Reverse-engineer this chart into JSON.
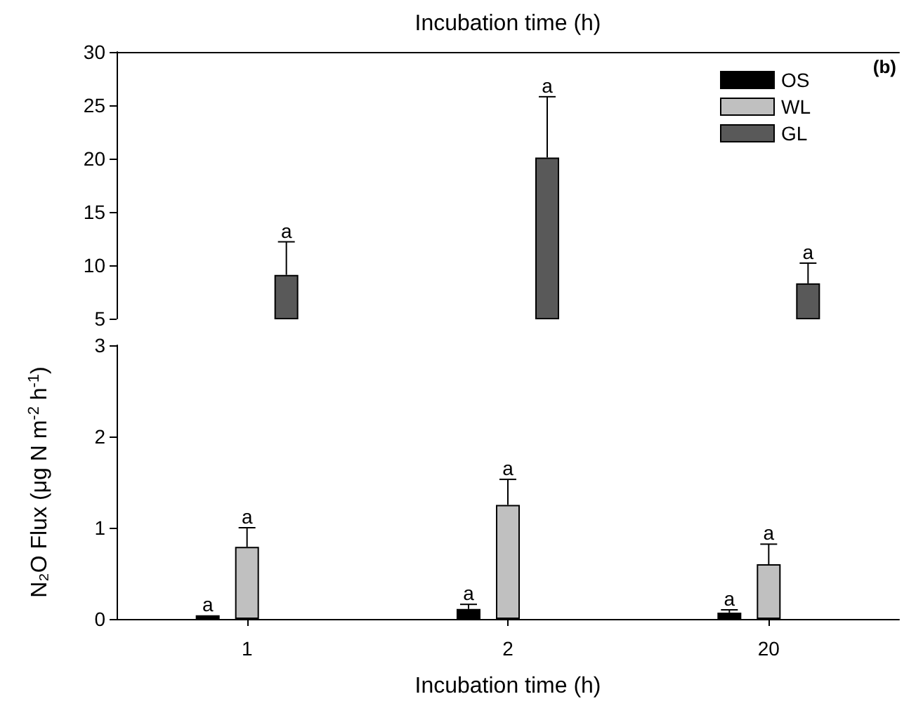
{
  "chart_data": [
    {
      "type": "bar",
      "xlabel": "Incubation time (h)",
      "categories": [
        "1",
        "2",
        "20"
      ],
      "series": [
        {
          "name": "OS",
          "color": "#000000",
          "values": [
            null,
            null,
            null
          ]
        },
        {
          "name": "WL",
          "color": "#c0c0c0",
          "values": [
            null,
            null,
            null
          ]
        },
        {
          "name": "GL",
          "color": "#595959",
          "values": [
            9.1,
            20.1,
            8.3
          ],
          "errors": [
            [
              9.1,
              12.2
            ],
            [
              20.1,
              25.8
            ],
            [
              8.3,
              10.2
            ]
          ],
          "value_labels": [
            "a",
            "a",
            "a"
          ]
        }
      ],
      "ylim": [
        5,
        30
      ],
      "yticks": [
        5,
        10,
        15,
        20,
        25,
        30
      ],
      "tick_labels": "y",
      "legend": "top right",
      "grid": false,
      "annotations": [
        "(b)"
      ]
    },
    {
      "type": "bar",
      "xlabel": "Incubation time (h)",
      "ylabel": "N₂O Flux (μg N m$^{-2}$ h$^{-1}$)",
      "categories": [
        "1",
        "2",
        "20"
      ],
      "series": [
        {
          "color": "#000000",
          "values": [
            0.04,
            0.11,
            0.07
          ],
          "errors": [
            null,
            [
              0.11,
              0.16
            ],
            [
              0.07,
              0.1
            ]
          ],
          "value_labels": [
            "a",
            "a",
            "a"
          ]
        },
        {
          "color": "#c0c0c0",
          "values": [
            0.79,
            1.25,
            0.6
          ],
          "errors": [
            [
              0.79,
              1.0
            ],
            [
              1.25,
              1.53
            ],
            [
              0.6,
              0.82
            ]
          ],
          "value_labels": [
            "a",
            "a",
            "a"
          ]
        },
        {
          "color": "#595959",
          "values": [
            null,
            null,
            null
          ]
        }
      ],
      "ylim": [
        0,
        3
      ],
      "yticks": [
        0,
        1,
        2,
        3
      ],
      "grid": false
    }
  ]
}
